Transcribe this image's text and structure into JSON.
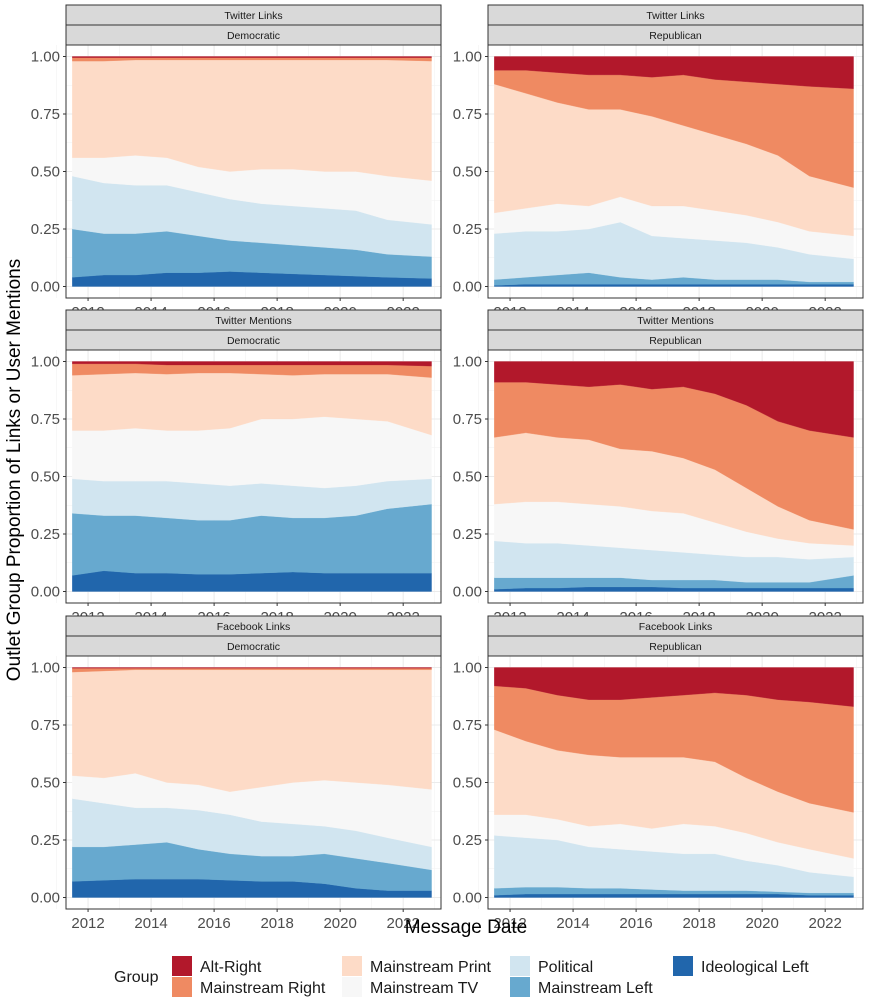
{
  "chart_data": {
    "type": "area",
    "xlabel": "Message Date",
    "ylabel": "Outlet Group Proportion of Links or User Mentions",
    "xlim": [
      2011.3,
      2023.2
    ],
    "ylim": [
      -0.05,
      1.05
    ],
    "x_ticks": [
      2012,
      2014,
      2016,
      2018,
      2020,
      2022
    ],
    "x_tick_labels": [
      "2012",
      "2014",
      "2016",
      "2018",
      "2020",
      "2022"
    ],
    "y_ticks": [
      0,
      0.25,
      0.5,
      0.75,
      1.0
    ],
    "y_tick_labels": [
      "0.00",
      "0.25",
      "0.50",
      "0.75",
      "1.00"
    ],
    "legend": {
      "title": "Group",
      "position": "bottom",
      "items": [
        {
          "label": "Alt-Right",
          "color": "#b2182b"
        },
        {
          "label": "Mainstream Right",
          "color": "#ef8a62"
        },
        {
          "label": "Mainstream Print",
          "color": "#fddbc7"
        },
        {
          "label": "Mainstream TV",
          "color": "#f7f7f7"
        },
        {
          "label": "Political",
          "color": "#d1e5f0"
        },
        {
          "label": "Mainstream Left",
          "color": "#67a9cf"
        },
        {
          "label": "Ideological Left",
          "color": "#2166ac"
        }
      ]
    },
    "stack_order_bottom_to_top": [
      "Ideological Left",
      "Mainstream Left",
      "Political",
      "Mainstream TV",
      "Mainstream Print",
      "Mainstream Right",
      "Alt-Right"
    ],
    "panels": [
      {
        "strip_top": "Twitter Links",
        "strip_bottom": "Democratic",
        "x": [
          2011.5,
          2012.5,
          2013.5,
          2014.5,
          2015.5,
          2016.5,
          2017.5,
          2018.5,
          2019.5,
          2020.5,
          2021.5,
          2022.9
        ],
        "cumulative_upper": {
          "Ideological Left": [
            0.04,
            0.05,
            0.05,
            0.06,
            0.06,
            0.065,
            0.06,
            0.055,
            0.05,
            0.045,
            0.04,
            0.035
          ],
          "Mainstream Left": [
            0.25,
            0.23,
            0.23,
            0.24,
            0.22,
            0.2,
            0.19,
            0.18,
            0.17,
            0.16,
            0.14,
            0.13
          ],
          "Political": [
            0.48,
            0.45,
            0.44,
            0.44,
            0.41,
            0.38,
            0.36,
            0.35,
            0.34,
            0.33,
            0.29,
            0.27
          ],
          "Mainstream TV": [
            0.56,
            0.56,
            0.57,
            0.56,
            0.52,
            0.5,
            0.51,
            0.51,
            0.5,
            0.5,
            0.48,
            0.46
          ],
          "Mainstream Print": [
            0.98,
            0.98,
            0.985,
            0.985,
            0.985,
            0.985,
            0.985,
            0.985,
            0.985,
            0.985,
            0.985,
            0.98
          ],
          "Mainstream Right": [
            0.995,
            0.995,
            0.995,
            0.995,
            0.995,
            0.995,
            0.995,
            0.995,
            0.995,
            0.995,
            0.995,
            0.995
          ],
          "Alt-Right": [
            1,
            1,
            1,
            1,
            1,
            1,
            1,
            1,
            1,
            1,
            1,
            1
          ]
        }
      },
      {
        "strip_top": "Twitter Links",
        "strip_bottom": "Republican",
        "x": [
          2011.5,
          2012.5,
          2013.5,
          2014.5,
          2015.5,
          2016.5,
          2017.5,
          2018.5,
          2019.5,
          2020.5,
          2021.5,
          2022.9
        ],
        "cumulative_upper": {
          "Ideological Left": [
            0.005,
            0.01,
            0.01,
            0.01,
            0.01,
            0.01,
            0.01,
            0.01,
            0.01,
            0.01,
            0.01,
            0.01
          ],
          "Mainstream Left": [
            0.03,
            0.04,
            0.05,
            0.06,
            0.04,
            0.03,
            0.04,
            0.03,
            0.03,
            0.03,
            0.02,
            0.02
          ],
          "Political": [
            0.23,
            0.24,
            0.24,
            0.25,
            0.28,
            0.22,
            0.21,
            0.2,
            0.19,
            0.17,
            0.14,
            0.12
          ],
          "Mainstream TV": [
            0.32,
            0.34,
            0.36,
            0.35,
            0.39,
            0.35,
            0.35,
            0.33,
            0.31,
            0.28,
            0.24,
            0.22
          ],
          "Mainstream Print": [
            0.88,
            0.84,
            0.8,
            0.77,
            0.77,
            0.74,
            0.7,
            0.66,
            0.62,
            0.57,
            0.48,
            0.43
          ],
          "Mainstream Right": [
            0.94,
            0.94,
            0.93,
            0.92,
            0.92,
            0.91,
            0.92,
            0.9,
            0.89,
            0.88,
            0.87,
            0.86
          ],
          "Alt-Right": [
            1,
            1,
            1,
            1,
            1,
            1,
            1,
            1,
            1,
            1,
            1,
            1
          ]
        }
      },
      {
        "strip_top": "Twitter Mentions",
        "strip_bottom": "Democratic",
        "x": [
          2011.5,
          2012.5,
          2013.5,
          2014.5,
          2015.5,
          2016.5,
          2017.5,
          2018.5,
          2019.5,
          2020.5,
          2021.5,
          2022.9
        ],
        "cumulative_upper": {
          "Ideological Left": [
            0.07,
            0.09,
            0.08,
            0.08,
            0.075,
            0.075,
            0.08,
            0.085,
            0.08,
            0.08,
            0.08,
            0.08
          ],
          "Mainstream Left": [
            0.34,
            0.33,
            0.33,
            0.32,
            0.31,
            0.31,
            0.33,
            0.32,
            0.32,
            0.33,
            0.36,
            0.38
          ],
          "Political": [
            0.49,
            0.48,
            0.48,
            0.48,
            0.47,
            0.46,
            0.47,
            0.46,
            0.45,
            0.46,
            0.48,
            0.49
          ],
          "Mainstream TV": [
            0.7,
            0.7,
            0.71,
            0.7,
            0.7,
            0.71,
            0.75,
            0.75,
            0.76,
            0.75,
            0.74,
            0.68
          ],
          "Mainstream Print": [
            0.94,
            0.945,
            0.95,
            0.945,
            0.95,
            0.95,
            0.945,
            0.94,
            0.945,
            0.945,
            0.945,
            0.93
          ],
          "Mainstream Right": [
            0.99,
            0.99,
            0.99,
            0.985,
            0.985,
            0.985,
            0.985,
            0.985,
            0.985,
            0.985,
            0.985,
            0.98
          ],
          "Alt-Right": [
            1,
            1,
            1,
            1,
            1,
            1,
            1,
            1,
            1,
            1,
            1,
            1
          ]
        }
      },
      {
        "strip_top": "Twitter Mentions",
        "strip_bottom": "Republican",
        "x": [
          2011.5,
          2012.5,
          2013.5,
          2014.5,
          2015.5,
          2016.5,
          2017.5,
          2018.5,
          2019.5,
          2020.5,
          2021.5,
          2022.9
        ],
        "cumulative_upper": {
          "Ideological Left": [
            0.01,
            0.015,
            0.015,
            0.02,
            0.02,
            0.02,
            0.015,
            0.015,
            0.015,
            0.015,
            0.015,
            0.015
          ],
          "Mainstream Left": [
            0.06,
            0.06,
            0.06,
            0.06,
            0.06,
            0.05,
            0.05,
            0.05,
            0.04,
            0.04,
            0.04,
            0.07
          ],
          "Political": [
            0.22,
            0.21,
            0.21,
            0.2,
            0.19,
            0.18,
            0.17,
            0.16,
            0.15,
            0.15,
            0.14,
            0.15
          ],
          "Mainstream TV": [
            0.38,
            0.39,
            0.39,
            0.38,
            0.37,
            0.35,
            0.34,
            0.3,
            0.26,
            0.23,
            0.21,
            0.2
          ],
          "Mainstream Print": [
            0.67,
            0.69,
            0.67,
            0.66,
            0.62,
            0.61,
            0.58,
            0.53,
            0.45,
            0.37,
            0.31,
            0.27
          ],
          "Mainstream Right": [
            0.91,
            0.91,
            0.9,
            0.89,
            0.9,
            0.88,
            0.89,
            0.86,
            0.81,
            0.74,
            0.7,
            0.67
          ],
          "Alt-Right": [
            1,
            1,
            1,
            1,
            1,
            1,
            1,
            1,
            1,
            1,
            1,
            1
          ]
        }
      },
      {
        "strip_top": "Facebook Links",
        "strip_bottom": "Democratic",
        "x": [
          2011.5,
          2012.5,
          2013.5,
          2014.5,
          2015.5,
          2016.5,
          2017.5,
          2018.5,
          2019.5,
          2020.5,
          2021.5,
          2022.9
        ],
        "cumulative_upper": {
          "Ideological Left": [
            0.07,
            0.075,
            0.08,
            0.08,
            0.08,
            0.075,
            0.07,
            0.07,
            0.06,
            0.04,
            0.03,
            0.03
          ],
          "Mainstream Left": [
            0.22,
            0.22,
            0.23,
            0.24,
            0.21,
            0.19,
            0.18,
            0.18,
            0.19,
            0.17,
            0.15,
            0.12
          ],
          "Political": [
            0.43,
            0.41,
            0.39,
            0.39,
            0.38,
            0.36,
            0.33,
            0.32,
            0.31,
            0.29,
            0.26,
            0.22
          ],
          "Mainstream TV": [
            0.53,
            0.52,
            0.54,
            0.5,
            0.49,
            0.46,
            0.48,
            0.5,
            0.51,
            0.5,
            0.49,
            0.47
          ],
          "Mainstream Print": [
            0.98,
            0.985,
            0.99,
            0.99,
            0.99,
            0.99,
            0.99,
            0.99,
            0.99,
            0.99,
            0.99,
            0.99
          ],
          "Mainstream Right": [
            0.997,
            0.997,
            0.997,
            0.997,
            0.997,
            0.997,
            0.997,
            0.997,
            0.997,
            0.997,
            0.997,
            0.997
          ],
          "Alt-Right": [
            1,
            1,
            1,
            1,
            1,
            1,
            1,
            1,
            1,
            1,
            1,
            1
          ]
        }
      },
      {
        "strip_top": "Facebook Links",
        "strip_bottom": "Republican",
        "x": [
          2011.5,
          2012.5,
          2013.5,
          2014.5,
          2015.5,
          2016.5,
          2017.5,
          2018.5,
          2019.5,
          2020.5,
          2021.5,
          2022.9
        ],
        "cumulative_upper": {
          "Ideological Left": [
            0.01,
            0.015,
            0.015,
            0.015,
            0.015,
            0.015,
            0.015,
            0.015,
            0.015,
            0.015,
            0.01,
            0.01
          ],
          "Mainstream Left": [
            0.04,
            0.045,
            0.045,
            0.04,
            0.04,
            0.035,
            0.03,
            0.03,
            0.03,
            0.025,
            0.02,
            0.02
          ],
          "Political": [
            0.27,
            0.26,
            0.25,
            0.22,
            0.21,
            0.2,
            0.19,
            0.19,
            0.16,
            0.14,
            0.11,
            0.09
          ],
          "Mainstream TV": [
            0.36,
            0.36,
            0.34,
            0.31,
            0.32,
            0.3,
            0.32,
            0.31,
            0.28,
            0.24,
            0.21,
            0.17
          ],
          "Mainstream Print": [
            0.73,
            0.68,
            0.64,
            0.62,
            0.61,
            0.61,
            0.61,
            0.59,
            0.52,
            0.46,
            0.41,
            0.37
          ],
          "Mainstream Right": [
            0.92,
            0.91,
            0.88,
            0.86,
            0.86,
            0.87,
            0.88,
            0.89,
            0.88,
            0.86,
            0.85,
            0.83
          ],
          "Alt-Right": [
            1,
            1,
            1,
            1,
            1,
            1,
            1,
            1,
            1,
            1,
            1,
            1
          ]
        }
      }
    ]
  }
}
